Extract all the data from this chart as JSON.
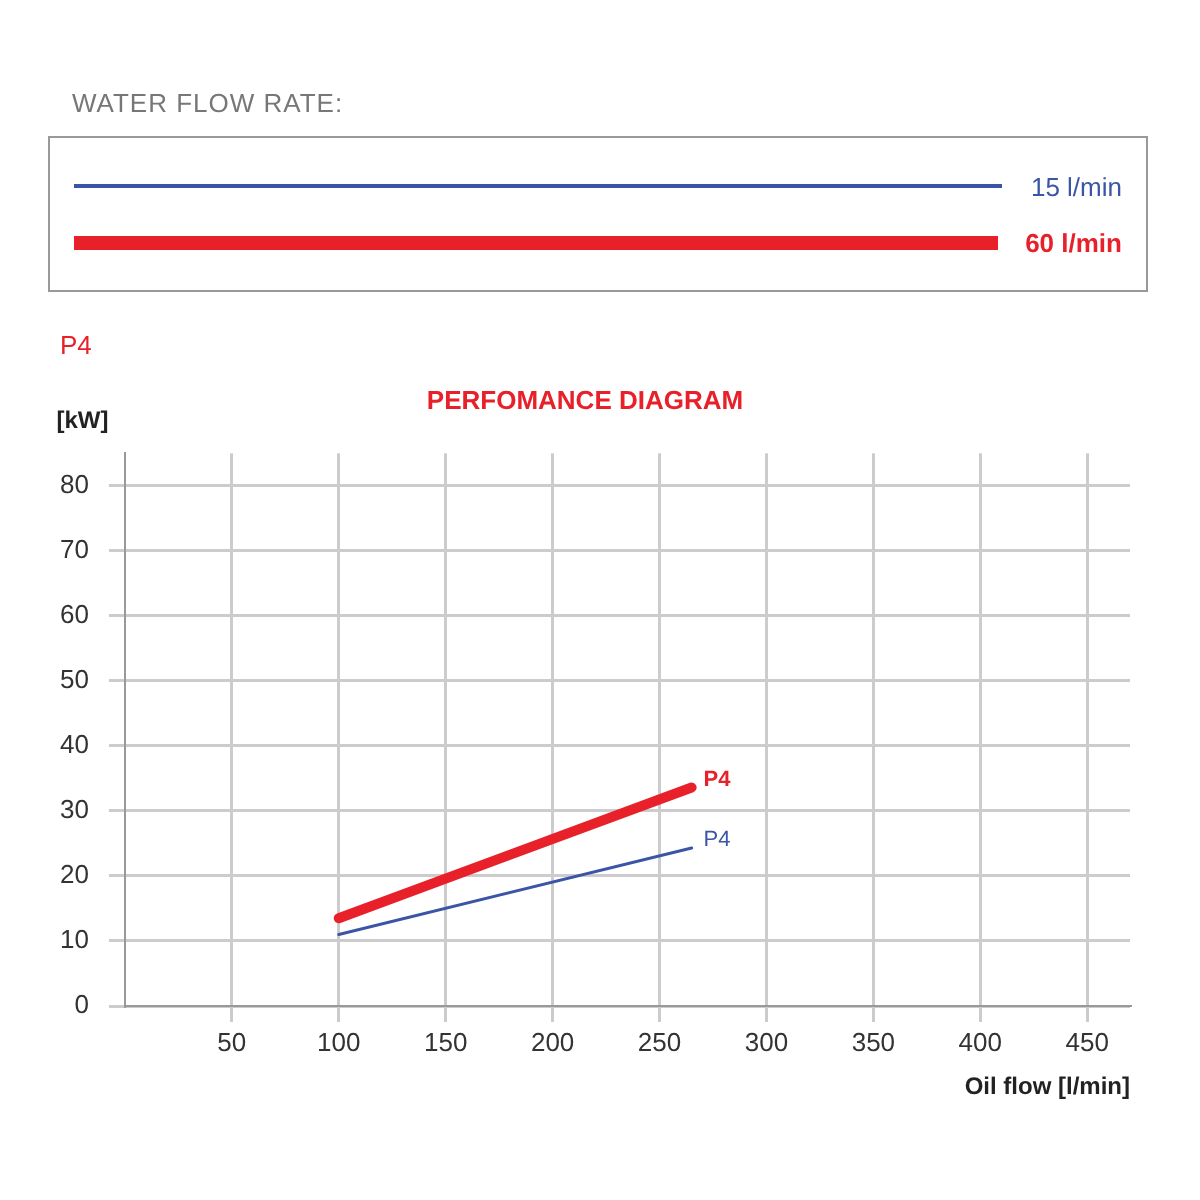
{
  "chart_data": {
    "type": "line",
    "title": "PERFOMANCE DIAGRAM",
    "subtitle": "P4",
    "legend_title": "WATER FLOW RATE:",
    "xlabel": "Oil flow [l/min]",
    "ylabel": "[kW]",
    "x": [
      100,
      265
    ],
    "series": [
      {
        "name": "15 l/min",
        "color": "#3a55a5",
        "values": [
          11,
          24.3
        ]
      },
      {
        "name": "60 l/min",
        "color": "#e8202a",
        "values": [
          13.5,
          33.6
        ]
      }
    ],
    "xlim": [
      0,
      470
    ],
    "xticks": [
      50,
      100,
      150,
      200,
      250,
      300,
      350,
      400,
      450
    ],
    "ylim": [
      0,
      85
    ],
    "yticks": [
      0,
      10,
      20,
      30,
      40,
      50,
      60,
      70,
      80
    ],
    "grid": true,
    "legend": "top",
    "marker": "none",
    "line_style": "solid",
    "annotations": [
      {
        "text": "P4",
        "x": 265,
        "y": 24.3
      },
      {
        "text": "P4",
        "x": 265,
        "y": 33.6
      }
    ]
  }
}
